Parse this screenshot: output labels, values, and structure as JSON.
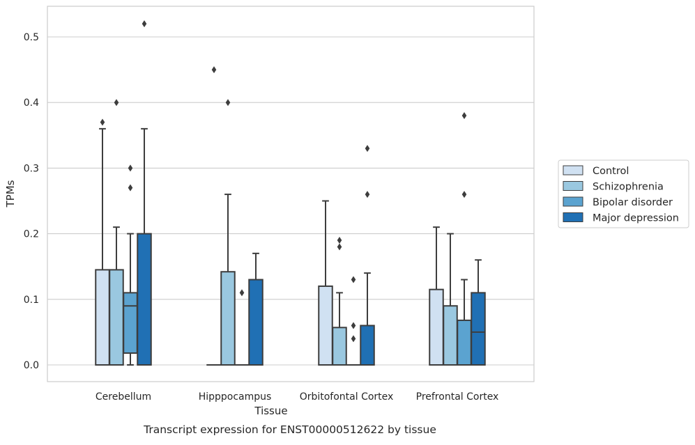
{
  "chart_data": {
    "type": "boxplot",
    "xlabel": "Tissue",
    "ylabel": "TPMs",
    "caption": "Transcript expression for ENST00000512622 by tissue",
    "ylim": [
      -0.025,
      0.545
    ],
    "yticks": [
      "0.0",
      "0.1",
      "0.2",
      "0.3",
      "0.4",
      "0.5"
    ],
    "grid": true,
    "legend_position": "right",
    "categories": [
      "Cerebellum",
      "Hipppocampus",
      "Orbitofontal Cortex",
      "Prefrontal Cortex"
    ],
    "series": [
      {
        "name": "Control",
        "color": "#d0e1f2",
        "boxes": [
          {
            "min": 0,
            "q1": 0,
            "median": 0,
            "q3": 0.145,
            "max": 0.36,
            "outliers": [
              0.37
            ]
          },
          {
            "min": 0,
            "q1": 0,
            "median": 0,
            "q3": 0,
            "max": 0,
            "outliers": [
              0.45
            ]
          },
          {
            "min": 0,
            "q1": 0,
            "median": 0,
            "q3": 0.12,
            "max": 0.25,
            "outliers": []
          },
          {
            "min": 0,
            "q1": 0,
            "median": 0,
            "q3": 0.115,
            "max": 0.21,
            "outliers": []
          }
        ]
      },
      {
        "name": "Schizophrenia",
        "color": "#9ac8e0",
        "boxes": [
          {
            "min": 0,
            "q1": 0,
            "median": 0,
            "q3": 0.145,
            "max": 0.21,
            "outliers": [
              0.4
            ]
          },
          {
            "min": 0,
            "q1": 0,
            "median": 0,
            "q3": 0.142,
            "max": 0.26,
            "outliers": [
              0.4
            ]
          },
          {
            "min": 0,
            "q1": 0,
            "median": 0,
            "q3": 0.057,
            "max": 0.11,
            "outliers": [
              0.18,
              0.19
            ]
          },
          {
            "min": 0,
            "q1": 0,
            "median": 0,
            "q3": 0.09,
            "max": 0.2,
            "outliers": []
          }
        ]
      },
      {
        "name": "Bipolar disorder",
        "color": "#5ba3d0",
        "boxes": [
          {
            "min": 0,
            "q1": 0.018,
            "median": 0.09,
            "q3": 0.11,
            "max": 0.2,
            "outliers": [
              0.27,
              0.3
            ]
          },
          {
            "min": 0,
            "q1": 0,
            "median": 0,
            "q3": 0,
            "max": 0,
            "outliers": [
              0.11
            ]
          },
          {
            "min": 0,
            "q1": 0,
            "median": 0,
            "q3": 0,
            "max": 0,
            "outliers": [
              0.04,
              0.06,
              0.13
            ]
          },
          {
            "min": 0,
            "q1": 0,
            "median": 0,
            "q3": 0.068,
            "max": 0.13,
            "outliers": [
              0.26,
              0.38
            ]
          }
        ]
      },
      {
        "name": "Major depression",
        "color": "#2070b4",
        "boxes": [
          {
            "min": 0,
            "q1": 0,
            "median": 0,
            "q3": 0.2,
            "max": 0.36,
            "outliers": [
              0.52
            ]
          },
          {
            "min": 0,
            "q1": 0,
            "median": 0,
            "q3": 0.13,
            "max": 0.17,
            "outliers": []
          },
          {
            "min": 0,
            "q1": 0,
            "median": 0,
            "q3": 0.06,
            "max": 0.14,
            "outliers": [
              0.26,
              0.33
            ]
          },
          {
            "min": 0,
            "q1": 0,
            "median": 0.05,
            "q3": 0.11,
            "max": 0.16,
            "outliers": []
          }
        ]
      }
    ]
  }
}
